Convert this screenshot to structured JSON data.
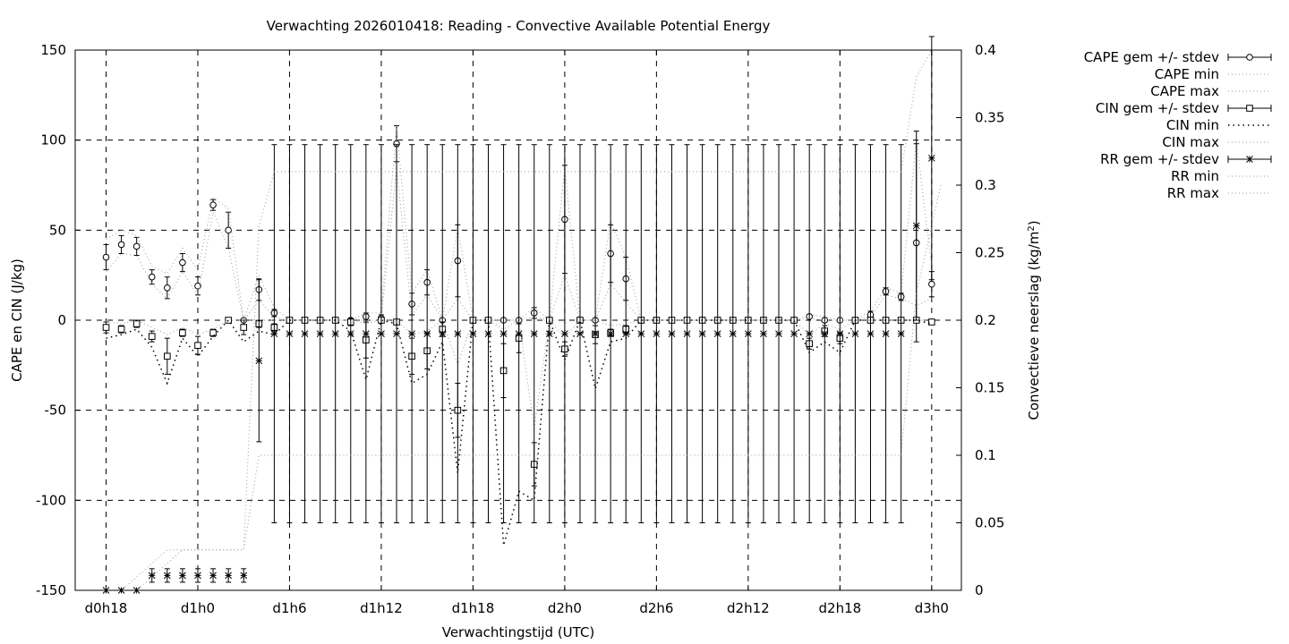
{
  "chart_data": {
    "type": "line",
    "title": "Verwachting 2026010418: Reading - Convective Available Potential Energy",
    "xlabel": "Verwachtingstijd (UTC)",
    "ylabel": "CAPE en CIN (J/kg)",
    "y2label_main": "Convectieve neerslag (kg/m",
    "y2label_sup": "2",
    "y2label_end": ")",
    "x_range_hours": [
      18,
      78
    ],
    "ylim": [
      -150,
      150
    ],
    "y2lim": [
      0,
      0.4
    ],
    "grid": true,
    "legend_position": "outside-right",
    "x_ticks": [
      {
        "h": 18,
        "label": "d0h18"
      },
      {
        "h": 24,
        "label": "d1h0"
      },
      {
        "h": 30,
        "label": "d1h6"
      },
      {
        "h": 36,
        "label": "d1h12"
      },
      {
        "h": 42,
        "label": "d1h18"
      },
      {
        "h": 48,
        "label": "d2h0"
      },
      {
        "h": 54,
        "label": "d2h6"
      },
      {
        "h": 60,
        "label": "d2h12"
      },
      {
        "h": 66,
        "label": "d2h18"
      },
      {
        "h": 72,
        "label": "d3h0"
      }
    ],
    "y_ticks": [
      {
        "v": 150,
        "label": "150"
      },
      {
        "v": 100,
        "label": "100"
      },
      {
        "v": 50,
        "label": "50"
      },
      {
        "v": 0,
        "label": "0"
      },
      {
        "v": -50,
        "label": "-50"
      },
      {
        "v": -100,
        "label": "-100"
      },
      {
        "v": -150,
        "label": "-150"
      }
    ],
    "y2_ticks": [
      {
        "v": 0.4,
        "label": "0.4"
      },
      {
        "v": 0.35,
        "label": "0.35"
      },
      {
        "v": 0.3,
        "label": "0.3"
      },
      {
        "v": 0.25,
        "label": "0.25"
      },
      {
        "v": 0.2,
        "label": "0.2"
      },
      {
        "v": 0.15,
        "label": "0.15"
      },
      {
        "v": 0.1,
        "label": "0.1"
      },
      {
        "v": 0.05,
        "label": "0.05"
      },
      {
        "v": 0,
        "label": "0"
      }
    ],
    "series": [
      {
        "name": "CAPE gem +/- stdev",
        "kind": "errorbar",
        "marker": "circle",
        "axis": "y",
        "x": [
          18,
          19,
          20,
          21,
          22,
          23,
          24,
          25,
          26,
          27,
          28,
          29,
          30,
          31,
          32,
          33,
          34,
          35,
          36,
          37,
          38,
          39,
          40,
          41,
          42,
          43,
          44,
          45,
          46,
          47,
          48,
          49,
          50,
          51,
          52,
          53,
          54,
          55,
          56,
          57,
          58,
          59,
          60,
          61,
          62,
          63,
          64,
          65,
          66,
          67,
          68,
          69,
          70,
          71,
          72
        ],
        "y": [
          35,
          42,
          41,
          24,
          18,
          32,
          19,
          64,
          50,
          0,
          17,
          4,
          0,
          0,
          0,
          0,
          0,
          2,
          1,
          98,
          9,
          21,
          0,
          33,
          0,
          0,
          0,
          0,
          4,
          0,
          56,
          0,
          0,
          37,
          23,
          0,
          0,
          0,
          0,
          0,
          0,
          0,
          0,
          0,
          0,
          0,
          2,
          0,
          0,
          0,
          3,
          16,
          13,
          43,
          20
        ],
        "err": [
          7,
          5,
          5,
          4,
          6,
          5,
          5,
          3,
          10,
          0,
          6,
          2,
          0,
          0,
          0,
          0,
          0,
          2,
          2,
          10,
          6,
          7,
          0,
          20,
          0,
          0,
          0,
          0,
          3,
          0,
          30,
          0,
          0,
          16,
          12,
          0,
          0,
          0,
          0,
          0,
          0,
          0,
          0,
          0,
          0,
          0,
          1,
          1,
          0,
          0,
          2,
          2,
          2,
          55,
          7
        ]
      },
      {
        "name": "CAPE min",
        "kind": "line",
        "axis": "y",
        "x": [
          18,
          19,
          20,
          21,
          22,
          23,
          24,
          25,
          26,
          27,
          28,
          29,
          30,
          31,
          32,
          33,
          34,
          35,
          36,
          37,
          38,
          39,
          40,
          41,
          42,
          43,
          44,
          45,
          46,
          47,
          48,
          49,
          50,
          51,
          52,
          53,
          54,
          55,
          56,
          57,
          58,
          59,
          60,
          61,
          62,
          63,
          64,
          65,
          66,
          67,
          68,
          69,
          70,
          71,
          72
        ],
        "y": [
          27,
          37,
          36,
          20,
          12,
          27,
          14,
          60,
          40,
          0,
          11,
          2,
          0,
          0,
          0,
          0,
          0,
          0,
          0,
          85,
          3,
          14,
          0,
          12,
          0,
          0,
          0,
          0,
          2,
          0,
          25,
          0,
          0,
          20,
          10,
          0,
          0,
          0,
          0,
          0,
          0,
          0,
          0,
          0,
          0,
          0,
          1,
          0,
          0,
          0,
          2,
          14,
          12,
          8,
          12
        ]
      },
      {
        "name": "CAPE max",
        "kind": "line",
        "axis": "y",
        "x": [
          18,
          19,
          20,
          21,
          22,
          23,
          24,
          25,
          26,
          27,
          28,
          29,
          30,
          31,
          32,
          33,
          34,
          35,
          36,
          37,
          38,
          39,
          40,
          41,
          42,
          43,
          44,
          45,
          46,
          47,
          48,
          49,
          50,
          51,
          52,
          53,
          54,
          55,
          56,
          57,
          58,
          59,
          60,
          61,
          62,
          63,
          64,
          65,
          66,
          67,
          68,
          69,
          70,
          71,
          72
        ],
        "y": [
          45,
          50,
          47,
          30,
          26,
          40,
          28,
          68,
          62,
          0,
          25,
          7,
          0,
          0,
          0,
          0,
          0,
          4,
          4,
          108,
          15,
          28,
          0,
          52,
          0,
          0,
          0,
          0,
          7,
          0,
          85,
          0,
          0,
          55,
          35,
          0,
          0,
          0,
          0,
          0,
          0,
          0,
          0,
          0,
          0,
          0,
          3,
          2,
          0,
          0,
          5,
          18,
          15,
          100,
          30
        ]
      },
      {
        "name": "CIN gem +/- stdev",
        "kind": "errorbar",
        "marker": "square",
        "axis": "y",
        "x": [
          18,
          19,
          20,
          21,
          22,
          23,
          24,
          25,
          26,
          27,
          28,
          29,
          30,
          31,
          32,
          33,
          34,
          35,
          36,
          37,
          38,
          39,
          40,
          41,
          42,
          43,
          44,
          45,
          46,
          47,
          48,
          49,
          50,
          51,
          52,
          53,
          54,
          55,
          56,
          57,
          58,
          59,
          60,
          61,
          62,
          63,
          64,
          65,
          66,
          67,
          68,
          69,
          70,
          71,
          72
        ],
        "y": [
          -4,
          -5,
          -2,
          -9,
          -20,
          -7,
          -14,
          -7,
          0,
          -4,
          -2,
          -4,
          0,
          0,
          0,
          0,
          -1,
          -11,
          0,
          -1,
          -20,
          -17,
          -5,
          -50,
          0,
          0,
          -28,
          -10,
          -80,
          0,
          -16,
          0,
          -8,
          -7,
          -5,
          0,
          0,
          0,
          0,
          0,
          0,
          0,
          0,
          0,
          0,
          0,
          -13,
          -6,
          -10,
          0,
          0,
          0,
          0,
          0,
          -1
        ],
        "err": [
          3,
          2,
          2,
          3,
          10,
          2,
          5,
          2,
          0,
          4,
          2,
          2,
          0,
          0,
          0,
          0,
          2,
          10,
          0,
          0,
          10,
          10,
          4,
          15,
          0,
          0,
          15,
          8,
          12,
          0,
          4,
          0,
          5,
          2,
          2,
          0,
          0,
          0,
          0,
          0,
          0,
          0,
          0,
          0,
          0,
          0,
          3,
          3,
          3,
          0,
          0,
          0,
          0,
          0,
          0
        ]
      },
      {
        "name": "CIN min",
        "kind": "line",
        "axis": "y",
        "x": [
          18,
          19,
          20,
          21,
          22,
          23,
          24,
          25,
          26,
          27,
          28,
          29,
          30,
          31,
          32,
          33,
          34,
          35,
          36,
          37,
          38,
          39,
          40,
          41,
          42,
          43,
          44,
          45,
          46,
          47,
          48,
          49,
          50,
          51,
          52,
          53,
          54,
          55,
          56,
          57,
          58,
          59,
          60,
          61,
          62,
          63,
          64,
          65,
          66,
          67,
          68,
          69,
          70,
          71,
          72
        ],
        "y": [
          -10,
          -8,
          -5,
          -15,
          -35,
          -10,
          -20,
          -9,
          0,
          -12,
          -6,
          -8,
          0,
          0,
          0,
          0,
          -6,
          -33,
          0,
          -2,
          -35,
          -30,
          -12,
          -85,
          0,
          0,
          -125,
          -95,
          -100,
          0,
          -22,
          0,
          -38,
          -12,
          -10,
          0,
          0,
          0,
          0,
          0,
          0,
          0,
          0,
          0,
          0,
          0,
          -18,
          -12,
          -18,
          0,
          0,
          0,
          0,
          0,
          -2
        ]
      },
      {
        "name": "CIN max",
        "kind": "line",
        "axis": "y",
        "x": [
          18,
          19,
          20,
          21,
          22,
          23,
          24,
          25,
          26,
          27,
          28,
          29,
          30,
          31,
          32,
          33,
          34,
          35,
          36,
          37,
          38,
          39,
          40,
          41,
          42,
          43,
          44,
          45,
          46,
          47,
          48,
          49,
          50,
          51,
          52,
          53,
          54,
          55,
          56,
          57,
          58,
          59,
          60,
          61,
          62,
          63,
          64,
          65,
          66,
          67,
          68,
          69,
          70,
          71,
          72
        ],
        "y": [
          -1,
          -2,
          0,
          -4,
          -8,
          -4,
          -8,
          -5,
          0,
          0,
          0,
          0,
          0,
          0,
          0,
          0,
          0,
          -2,
          0,
          0,
          -8,
          -6,
          0,
          -25,
          0,
          0,
          -5,
          0,
          -60,
          0,
          -10,
          0,
          0,
          -3,
          -2,
          0,
          0,
          0,
          0,
          0,
          0,
          0,
          0,
          0,
          0,
          0,
          -8,
          -2,
          -5,
          0,
          0,
          0,
          0,
          0,
          0
        ]
      },
      {
        "name": "RR gem +/- stdev",
        "kind": "errorbar",
        "marker": "star",
        "axis": "y2",
        "x": [
          18,
          19,
          20,
          21,
          22,
          23,
          24,
          25,
          26,
          27,
          28,
          29,
          30,
          31,
          32,
          33,
          34,
          35,
          36,
          37,
          38,
          39,
          40,
          41,
          42,
          43,
          44,
          45,
          46,
          47,
          48,
          49,
          50,
          51,
          52,
          53,
          54,
          55,
          56,
          57,
          58,
          59,
          60,
          61,
          62,
          63,
          64,
          65,
          66,
          67,
          68,
          69,
          70,
          71,
          72
        ],
        "y": [
          0,
          0,
          0,
          0.011,
          0.011,
          0.011,
          0.011,
          0.011,
          0.011,
          0.011,
          0.17,
          0.19,
          0.19,
          0.19,
          0.19,
          0.19,
          0.19,
          0.19,
          0.19,
          0.19,
          0.19,
          0.19,
          0.19,
          0.19,
          0.19,
          0.19,
          0.19,
          0.19,
          0.19,
          0.19,
          0.19,
          0.19,
          0.19,
          0.19,
          0.19,
          0.19,
          0.19,
          0.19,
          0.19,
          0.19,
          0.19,
          0.19,
          0.19,
          0.19,
          0.19,
          0.19,
          0.19,
          0.19,
          0.19,
          0.19,
          0.19,
          0.19,
          0.19,
          0.27,
          0.32
        ],
        "err": [
          0,
          0,
          0,
          0.005,
          0.005,
          0.005,
          0.005,
          0.005,
          0.005,
          0.005,
          0.06,
          0.14,
          0.14,
          0.14,
          0.14,
          0.14,
          0.14,
          0.14,
          0.14,
          0.14,
          0.14,
          0.14,
          0.14,
          0.14,
          0.14,
          0.14,
          0.14,
          0.14,
          0.14,
          0.14,
          0.14,
          0.14,
          0.14,
          0.14,
          0.14,
          0.14,
          0.14,
          0.14,
          0.14,
          0.14,
          0.14,
          0.14,
          0.14,
          0.14,
          0.14,
          0.14,
          0.14,
          0.14,
          0.14,
          0.14,
          0.14,
          0.14,
          0.14,
          0.07,
          0.09
        ]
      },
      {
        "name": "RR min",
        "kind": "line",
        "axis": "y2",
        "x": [
          18,
          19,
          20,
          21,
          22,
          23,
          24,
          25,
          26,
          27,
          28,
          29,
          30,
          31,
          32,
          33,
          34,
          35,
          36,
          37,
          38,
          39,
          40,
          41,
          42,
          43,
          44,
          45,
          46,
          47,
          48,
          49,
          50,
          51,
          52,
          53,
          54,
          55,
          56,
          57,
          58,
          59,
          60,
          61,
          62,
          63,
          64,
          65,
          66,
          67,
          68,
          69,
          70,
          71,
          72,
          72.6
        ],
        "y": [
          0,
          0,
          0,
          0.01,
          0.02,
          0.03,
          0.03,
          0.03,
          0.03,
          0.03,
          0.1,
          0.1,
          0.1,
          0.1,
          0.1,
          0.1,
          0.1,
          0.1,
          0.1,
          0.1,
          0.1,
          0.1,
          0.1,
          0.1,
          0.1,
          0.1,
          0.1,
          0.1,
          0.1,
          0.1,
          0.1,
          0.1,
          0.1,
          0.1,
          0.1,
          0.1,
          0.1,
          0.1,
          0.1,
          0.1,
          0.1,
          0.1,
          0.1,
          0.1,
          0.1,
          0.1,
          0.1,
          0.1,
          0.1,
          0.1,
          0.1,
          0.1,
          0.1,
          0.22,
          0.27,
          0.3
        ]
      },
      {
        "name": "RR max",
        "kind": "line",
        "axis": "y2",
        "x": [
          18,
          19,
          20,
          21,
          22,
          23,
          24,
          25,
          26,
          27,
          28,
          29,
          30,
          31,
          32,
          33,
          34,
          35,
          36,
          37,
          38,
          39,
          40,
          41,
          42,
          43,
          44,
          45,
          46,
          47,
          48,
          49,
          50,
          51,
          52,
          53,
          54,
          55,
          56,
          57,
          58,
          59,
          60,
          61,
          62,
          63,
          64,
          65,
          66,
          67,
          68,
          69,
          70,
          71,
          72
        ],
        "y": [
          0,
          0,
          0.01,
          0.02,
          0.03,
          0.03,
          0.03,
          0.03,
          0.03,
          0.03,
          0.27,
          0.31,
          0.31,
          0.31,
          0.31,
          0.31,
          0.31,
          0.31,
          0.31,
          0.31,
          0.31,
          0.31,
          0.31,
          0.31,
          0.31,
          0.31,
          0.31,
          0.31,
          0.31,
          0.31,
          0.31,
          0.31,
          0.31,
          0.31,
          0.31,
          0.31,
          0.31,
          0.31,
          0.31,
          0.31,
          0.31,
          0.31,
          0.31,
          0.31,
          0.31,
          0.31,
          0.31,
          0.31,
          0.31,
          0.31,
          0.31,
          0.31,
          0.31,
          0.38,
          0.4
        ]
      }
    ]
  }
}
